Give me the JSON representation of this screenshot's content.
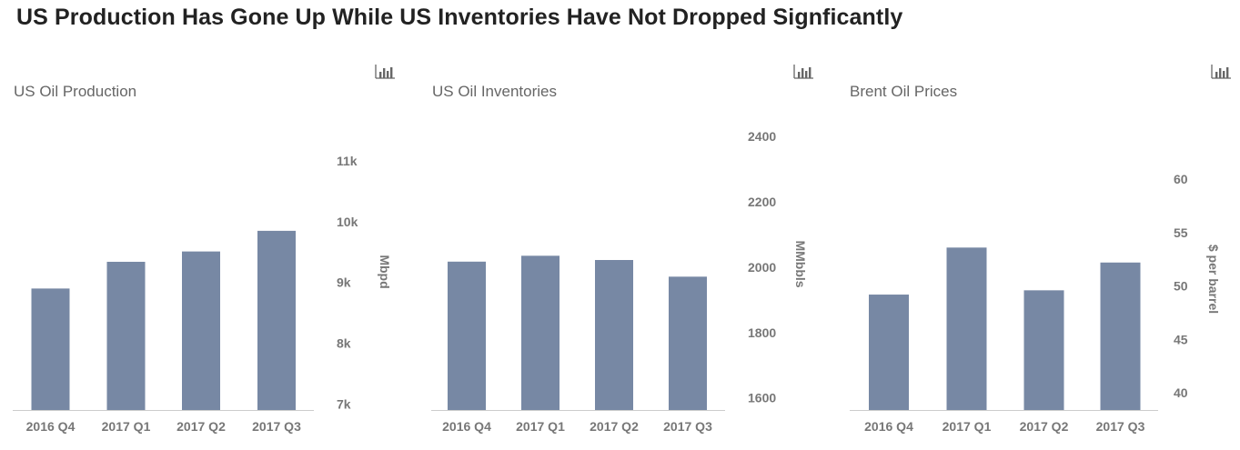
{
  "page": {
    "title": "US Production Has Gone Up While US Inventories Have Not Dropped Signficantly"
  },
  "colors": {
    "bar": "#7788a4",
    "title": "#222222",
    "chart_title": "#666666",
    "axis_text": "#777777"
  },
  "icons": {
    "menu": "bar-chart-menu-icon"
  },
  "chart_data": [
    {
      "type": "bar",
      "title": "US Oil Production",
      "categories": [
        "2016 Q4",
        "2017 Q1",
        "2017 Q2",
        "2017 Q3"
      ],
      "values": [
        8900,
        9340,
        9510,
        9850
      ],
      "ylabel": "Mbpd",
      "ylim": [
        6900,
        11450
      ],
      "yticks": [
        7000,
        8000,
        9000,
        10000,
        11000
      ],
      "ytick_labels": [
        "7k",
        "8k",
        "9k",
        "10k",
        "11k"
      ],
      "grid": false
    },
    {
      "type": "bar",
      "title": "US Oil Inventories",
      "categories": [
        "2016 Q4",
        "2017 Q1",
        "2017 Q2",
        "2017 Q3"
      ],
      "values": [
        2017,
        2035,
        2022,
        1971
      ],
      "ylabel": "MMbbls",
      "ylim": [
        1563,
        2456
      ],
      "yticks": [
        1600,
        1800,
        2000,
        2200,
        2400
      ],
      "ytick_labels": [
        "1600",
        "1800",
        "2000",
        "2200",
        "2400"
      ],
      "grid": false
    },
    {
      "type": "bar",
      "title": "Brent Oil Prices",
      "categories": [
        "2016 Q4",
        "2017 Q1",
        "2017 Q2",
        "2017 Q3"
      ],
      "values": [
        49.2,
        53.6,
        49.6,
        52.2
      ],
      "ylabel": "$ per barrel",
      "ylim": [
        38.4,
        62.9
      ],
      "yticks": [
        40,
        45,
        50,
        55,
        60
      ],
      "ytick_labels": [
        "40",
        "45",
        "50",
        "55",
        "60"
      ],
      "grid": false
    }
  ]
}
